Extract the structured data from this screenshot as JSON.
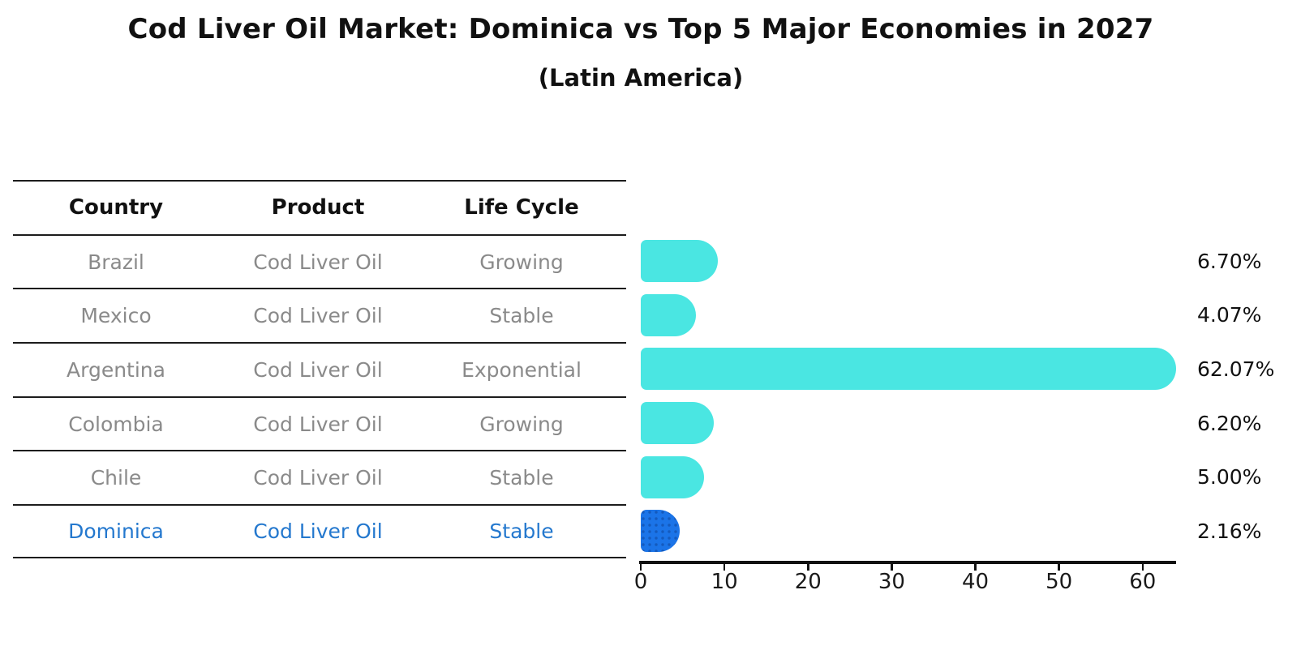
{
  "title": "Cod Liver Oil Market: Dominica vs Top 5 Major Economies in 2027",
  "subtitle": "(Latin America)",
  "chart_data": {
    "type": "bar",
    "orientation": "horizontal",
    "title": "Cod Liver Oil Market: Dominica vs Top 5 Major Economies in 2027",
    "subtitle": "(Latin America)",
    "columns": [
      "Country",
      "Product",
      "Life Cycle"
    ],
    "categories": [
      "Brazil",
      "Mexico",
      "Argentina",
      "Colombia",
      "Chile",
      "Dominica"
    ],
    "rows": [
      {
        "country": "Brazil",
        "product": "Cod Liver Oil",
        "life_cycle": "Growing",
        "value": 6.7,
        "label": "6.70%",
        "highlight": false
      },
      {
        "country": "Mexico",
        "product": "Cod Liver Oil",
        "life_cycle": "Stable",
        "value": 4.07,
        "label": "4.07%",
        "highlight": false
      },
      {
        "country": "Argentina",
        "product": "Cod Liver Oil",
        "life_cycle": "Exponential",
        "value": 62.07,
        "label": "62.07%",
        "highlight": false
      },
      {
        "country": "Colombia",
        "product": "Cod Liver Oil",
        "life_cycle": "Growing",
        "value": 6.2,
        "label": "6.20%",
        "highlight": false
      },
      {
        "country": "Chile",
        "product": "Cod Liver Oil",
        "life_cycle": "Stable",
        "value": 5.0,
        "label": "5.00%",
        "highlight": false
      },
      {
        "country": "Dominica",
        "product": "Cod Liver Oil",
        "life_cycle": "Stable",
        "value": 2.16,
        "label": "2.16%",
        "highlight": true
      }
    ],
    "xticks": [
      0,
      10,
      20,
      30,
      40,
      50,
      60
    ],
    "xtick_labels": [
      "0",
      "10",
      "20",
      "30",
      "40",
      "50",
      "60"
    ],
    "xlim": [
      0,
      64
    ],
    "grid": false,
    "legend": "none",
    "colors": {
      "bar": "#4AE6E2",
      "highlight_bar": "#1B74E8",
      "highlight_text": "#2478CE",
      "row_text": "#8A8A8A",
      "header_text": "#111111",
      "axis": "#111111"
    }
  }
}
